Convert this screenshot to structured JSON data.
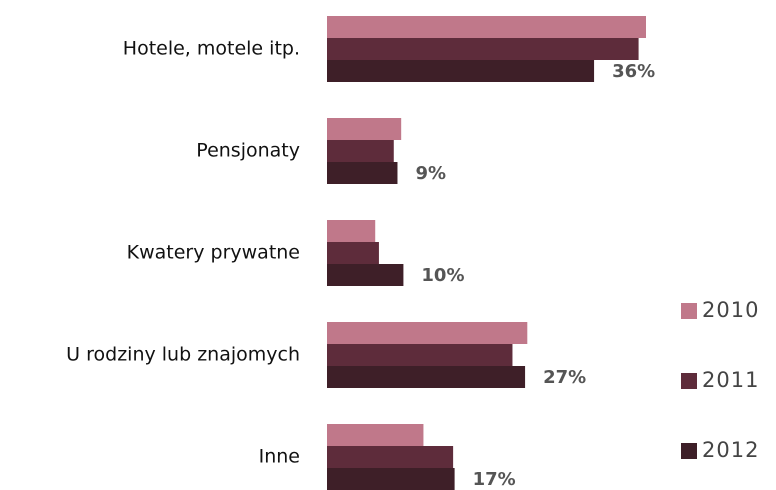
{
  "chart_data": {
    "type": "hbar",
    "categories": [
      "Hotele, motele itp.",
      "Pensjonaty",
      "Kwatery prywatne",
      "U rodziny lub znajomych",
      "Inne"
    ],
    "series": [
      {
        "name": "2010",
        "color": "#c0788a",
        "values": [
          43,
          10,
          6.5,
          27,
          13
        ]
      },
      {
        "name": "2011",
        "color": "#5e2c3b",
        "values": [
          42,
          9,
          7,
          25,
          17
        ]
      },
      {
        "name": "2012",
        "color": "#3e1f28",
        "values": [
          36,
          9.5,
          10.3,
          26.7,
          17.2
        ],
        "value_labels": [
          "36%",
          "9%",
          "10%",
          "27%",
          "17%"
        ]
      }
    ],
    "legend": "right"
  }
}
